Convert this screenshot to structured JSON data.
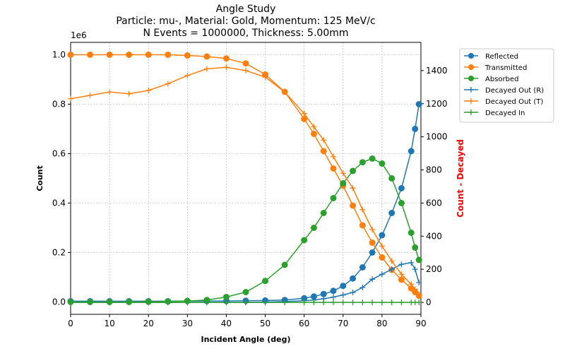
{
  "chart_data": {
    "type": "line",
    "title_lines": [
      "Angle Study",
      "Particle: mu-, Material: Gold, Momentum: 125 MeV/c",
      "N Events = 1000000, Thickness: 5.00mm"
    ],
    "xlabel": "Incident Angle (deg)",
    "ylabel_left": "Count",
    "ylabel_right": "Count - Decayed",
    "left_axis_multiplier": "1e6",
    "xlim": [
      0,
      90
    ],
    "ylim_left": [
      -0.05,
      1.05
    ],
    "ylim_right": [
      -72,
      1570
    ],
    "xticks": [
      0,
      10,
      20,
      30,
      40,
      50,
      60,
      70,
      80,
      90
    ],
    "yticks_left": [
      "0.0",
      "0.2",
      "0.4",
      "0.6",
      "0.8",
      "1.0"
    ],
    "yticks_right": [
      0,
      200,
      400,
      600,
      800,
      1000,
      1200,
      1400
    ],
    "grid": true,
    "legend_position": "outside-right-top",
    "x": [
      0,
      5,
      10,
      15,
      20,
      25,
      30,
      35,
      40,
      45,
      50,
      55,
      60,
      62.5,
      65,
      67.5,
      70,
      72.5,
      75,
      77.5,
      80,
      82.5,
      85,
      87.5,
      88.5,
      89.5
    ],
    "series": [
      {
        "name": "Reflected",
        "axis": "left",
        "marker": "o",
        "color": "#1f77b4",
        "values": [
          0.003,
          0.003,
          0.003,
          0.003,
          0.003,
          0.003,
          0.004,
          0.004,
          0.004,
          0.005,
          0.006,
          0.008,
          0.015,
          0.022,
          0.032,
          0.045,
          0.065,
          0.095,
          0.14,
          0.2,
          0.27,
          0.36,
          0.46,
          0.61,
          0.7,
          0.8
        ]
      },
      {
        "name": "Transmitted",
        "axis": "left",
        "marker": "o",
        "color": "#ff7f0e",
        "values": [
          1.0,
          1.0,
          1.0,
          1.0,
          1.0,
          1.0,
          0.997,
          0.993,
          0.985,
          0.965,
          0.92,
          0.85,
          0.74,
          0.68,
          0.61,
          0.54,
          0.47,
          0.39,
          0.31,
          0.24,
          0.18,
          0.13,
          0.09,
          0.055,
          0.04,
          0.025
        ]
      },
      {
        "name": "Absorbed",
        "axis": "left",
        "marker": "o",
        "color": "#2ca02c",
        "values": [
          0,
          0,
          0,
          0,
          0.001,
          0.002,
          0.004,
          0.008,
          0.02,
          0.04,
          0.085,
          0.15,
          0.25,
          0.3,
          0.36,
          0.42,
          0.48,
          0.53,
          0.565,
          0.58,
          0.56,
          0.5,
          0.4,
          0.28,
          0.22,
          0.17
        ]
      },
      {
        "name": "Decayed Out (R)",
        "axis": "right",
        "marker": "+",
        "color": "#1f77b4",
        "values": [
          0,
          0,
          0,
          0,
          0,
          0,
          0,
          0,
          0,
          0,
          2,
          5,
          10,
          14,
          22,
          32,
          45,
          60,
          90,
          140,
          170,
          200,
          230,
          240,
          200,
          120
        ]
      },
      {
        "name": "Decayed Out (T)",
        "axis": "right",
        "marker": "+",
        "color": "#ff7f0e",
        "values": [
          1230,
          1250,
          1270,
          1260,
          1280,
          1320,
          1370,
          1410,
          1420,
          1400,
          1360,
          1270,
          1140,
          1060,
          980,
          880,
          780,
          690,
          560,
          440,
          340,
          250,
          170,
          110,
          80,
          50
        ]
      },
      {
        "name": "Decayed In",
        "axis": "right",
        "marker": "+",
        "color": "#2ca02c",
        "values": [
          0,
          0,
          0,
          0,
          0,
          0,
          0,
          0,
          0,
          0,
          0,
          0,
          0,
          0,
          0,
          0,
          0,
          0,
          0,
          0,
          0,
          0,
          0,
          0,
          0,
          0
        ]
      }
    ],
    "colors": {
      "right_label": "#ff0000",
      "grid": "#b0b0b0"
    }
  }
}
